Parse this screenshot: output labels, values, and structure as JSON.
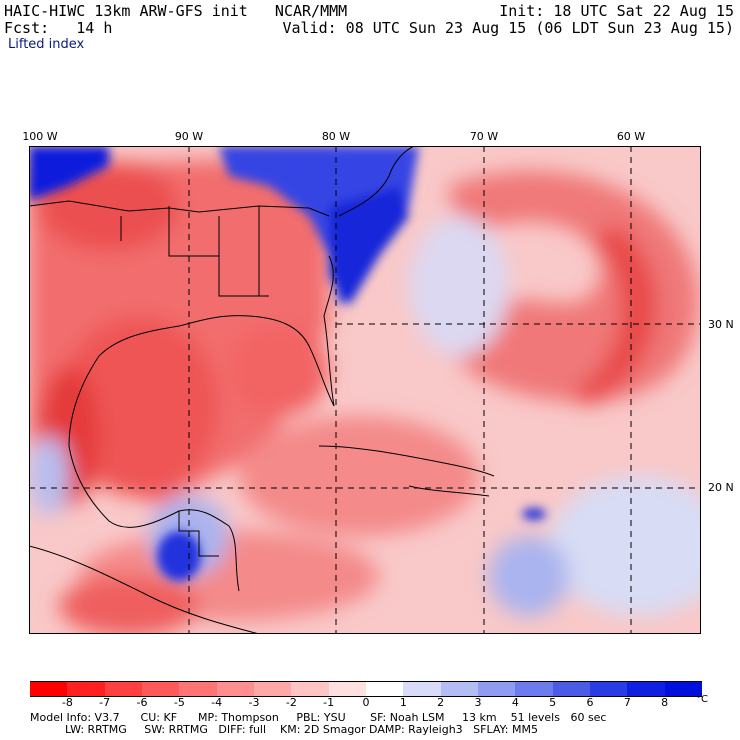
{
  "header": {
    "line1_left": "HAIC-HIWC 13km ARW-GFS init   NCAR/MMM",
    "line1_right": "Init: 18 UTC Sat 22 Aug 15",
    "line2_left": "Fcst:   14 h",
    "line2_right": "Valid: 08 UTC Sun 23 Aug 15 (06 LDT Sun 23 Aug 15)",
    "field": "Lifted index"
  },
  "map": {
    "lon_labels": [
      "100 W",
      "90 W",
      "80 W",
      "70 W",
      "60 W"
    ],
    "lat_labels": [
      "30 N",
      "20 N"
    ],
    "colors": {
      "strong_neg": "#e04040",
      "neg": "#f07070",
      "weak_neg": "#f8b0b0",
      "pos": "#b0b8f0",
      "strong_pos": "#1020e0",
      "grid": "#000000"
    }
  },
  "colorbar": {
    "labels": [
      "-8",
      "-7",
      "-6",
      "-5",
      "-4",
      "-3",
      "-2",
      "-1",
      "0",
      "1",
      "2",
      "3",
      "4",
      "5",
      "6",
      "7",
      "8"
    ],
    "unit": "°C",
    "colors": [
      "#ff0000",
      "#ff2020",
      "#ff4040",
      "#ff5a5a",
      "#ff7474",
      "#ff8e8e",
      "#ffa8a8",
      "#ffc4c4",
      "#ffe0e0",
      "#ffffff",
      "#d8dcf8",
      "#b4bcf4",
      "#909cf0",
      "#6c7cec",
      "#4a5ce6",
      "#2a3ce4",
      "#1020e0",
      "#0010dc"
    ]
  },
  "footer": {
    "line1": "Model Info: V3.7      CU: KF      MP: Thompson     PBL: YSU       SF: Noah LSM     13 km    51 levels   60 sec",
    "line2": "          LW: RRTMG     SW: RRTMG   DIFF: full    KM: 2D Smagor DAMP: Rayleigh3   SFLAY: MM5"
  }
}
